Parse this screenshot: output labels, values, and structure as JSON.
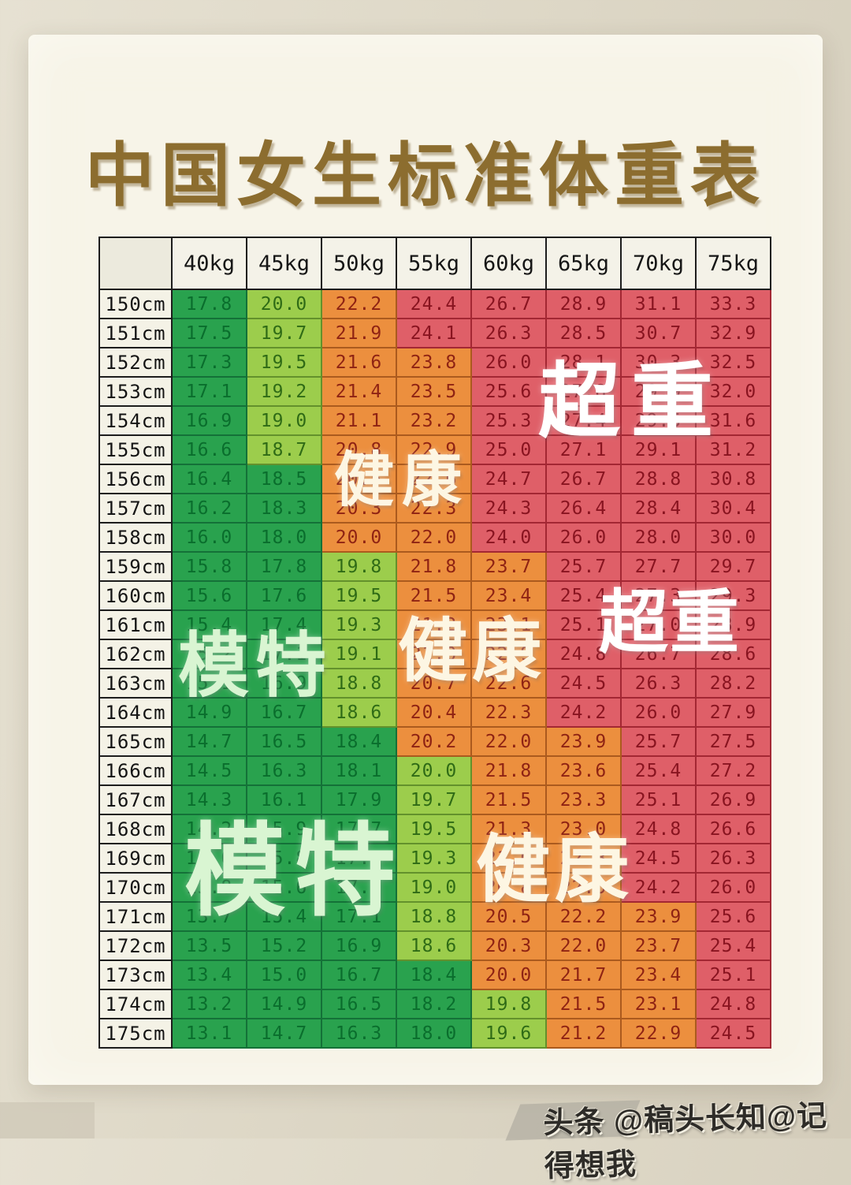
{
  "title": "中国女生标准体重表",
  "watermark": "头条 @稿头长知@记得想我",
  "colors": {
    "page_background": "#ded8c7",
    "card_background": "#f7f4e8",
    "title_brown": "#8c6d2f",
    "cell_dark_green": "#29a24e",
    "cell_light_green": "#9ccd4c",
    "cell_orange": "#ec8f3e",
    "cell_red": "#df5f68"
  },
  "overlays": [
    {
      "id": "overweight-1",
      "text": "超重"
    },
    {
      "id": "healthy-1",
      "text": "健康"
    },
    {
      "id": "model-1",
      "text": "模特"
    },
    {
      "id": "healthy-2",
      "text": "健康"
    },
    {
      "id": "overweight-2",
      "text": "超重"
    },
    {
      "id": "model-2",
      "text": "模特"
    },
    {
      "id": "healthy-3",
      "text": "健康"
    }
  ],
  "chart_data": {
    "type": "table",
    "title": "中国女生标准体重表",
    "description": "BMI values (weight kg / height m squared) for heights 150-175cm vs weights 40-75kg; cell color bands: dark green (model/underweight), light green, orange (healthy), red (overweight)",
    "col_headers": [
      "40kg",
      "45kg",
      "50kg",
      "55kg",
      "60kg",
      "65kg",
      "70kg",
      "75kg"
    ],
    "color_key": {
      "d": "#29a24e",
      "l": "#9ccd4c",
      "o": "#ec8f3e",
      "r": "#df5f68"
    },
    "rows": [
      {
        "height": "150cm",
        "bmi": [
          "17.8",
          "20.0",
          "22.2",
          "24.4",
          "26.7",
          "28.9",
          "31.1",
          "33.3"
        ],
        "colors": "dlorrrrr"
      },
      {
        "height": "151cm",
        "bmi": [
          "17.5",
          "19.7",
          "21.9",
          "24.1",
          "26.3",
          "28.5",
          "30.7",
          "32.9"
        ],
        "colors": "dlorrrrr"
      },
      {
        "height": "152cm",
        "bmi": [
          "17.3",
          "19.5",
          "21.6",
          "23.8",
          "26.0",
          "28.1",
          "30.3",
          "32.5"
        ],
        "colors": "dloorrrr"
      },
      {
        "height": "153cm",
        "bmi": [
          "17.1",
          "19.2",
          "21.4",
          "23.5",
          "25.6",
          "27.8",
          "29.9",
          "32.0"
        ],
        "colors": "dloorrrr"
      },
      {
        "height": "154cm",
        "bmi": [
          "16.9",
          "19.0",
          "21.1",
          "23.2",
          "25.3",
          "27.4",
          "29.5",
          "31.6"
        ],
        "colors": "dloorrrr"
      },
      {
        "height": "155cm",
        "bmi": [
          "16.6",
          "18.7",
          "20.8",
          "22.9",
          "25.0",
          "27.1",
          "29.1",
          "31.2"
        ],
        "colors": "dloorrrr"
      },
      {
        "height": "156cm",
        "bmi": [
          "16.4",
          "18.5",
          "20.5",
          "22.6",
          "24.7",
          "26.7",
          "28.8",
          "30.8"
        ],
        "colors": "ddoorrrr"
      },
      {
        "height": "157cm",
        "bmi": [
          "16.2",
          "18.3",
          "20.3",
          "22.3",
          "24.3",
          "26.4",
          "28.4",
          "30.4"
        ],
        "colors": "ddoorrrr"
      },
      {
        "height": "158cm",
        "bmi": [
          "16.0",
          "18.0",
          "20.0",
          "22.0",
          "24.0",
          "26.0",
          "28.0",
          "30.0"
        ],
        "colors": "ddoorrrr"
      },
      {
        "height": "159cm",
        "bmi": [
          "15.8",
          "17.8",
          "19.8",
          "21.8",
          "23.7",
          "25.7",
          "27.7",
          "29.7"
        ],
        "colors": "ddloorrr"
      },
      {
        "height": "160cm",
        "bmi": [
          "15.6",
          "17.6",
          "19.5",
          "21.5",
          "23.4",
          "25.4",
          "27.3",
          "29.3"
        ],
        "colors": "ddloorrr"
      },
      {
        "height": "161cm",
        "bmi": [
          "15.4",
          "17.4",
          "19.3",
          "21.2",
          "23.1",
          "25.1",
          "27.0",
          "28.9"
        ],
        "colors": "ddloorrr"
      },
      {
        "height": "162cm",
        "bmi": [
          "15.2",
          "17.1",
          "19.1",
          "21.0",
          "22.9",
          "24.8",
          "26.7",
          "28.6"
        ],
        "colors": "ddloorrr"
      },
      {
        "height": "163cm",
        "bmi": [
          "15.1",
          "16.9",
          "18.8",
          "20.7",
          "22.6",
          "24.5",
          "26.3",
          "28.2"
        ],
        "colors": "ddloorrr"
      },
      {
        "height": "164cm",
        "bmi": [
          "14.9",
          "16.7",
          "18.6",
          "20.4",
          "22.3",
          "24.2",
          "26.0",
          "27.9"
        ],
        "colors": "ddloorrr"
      },
      {
        "height": "165cm",
        "bmi": [
          "14.7",
          "16.5",
          "18.4",
          "20.2",
          "22.0",
          "23.9",
          "25.7",
          "27.5"
        ],
        "colors": "dddooorr"
      },
      {
        "height": "166cm",
        "bmi": [
          "14.5",
          "16.3",
          "18.1",
          "20.0",
          "21.8",
          "23.6",
          "25.4",
          "27.2"
        ],
        "colors": "dddloorr"
      },
      {
        "height": "167cm",
        "bmi": [
          "14.3",
          "16.1",
          "17.9",
          "19.7",
          "21.5",
          "23.3",
          "25.1",
          "26.9"
        ],
        "colors": "dddloorr"
      },
      {
        "height": "168cm",
        "bmi": [
          "14.2",
          "15.9",
          "17.7",
          "19.5",
          "21.3",
          "23.0",
          "24.8",
          "26.6"
        ],
        "colors": "dddloorr"
      },
      {
        "height": "169cm",
        "bmi": [
          "14.0",
          "15.8",
          "17.5",
          "19.3",
          "21.0",
          "22.8",
          "24.5",
          "26.3"
        ],
        "colors": "dddloorr"
      },
      {
        "height": "170cm",
        "bmi": [
          "13.8",
          "15.6",
          "17.3",
          "19.0",
          "20.8",
          "22.5",
          "24.2",
          "26.0"
        ],
        "colors": "dddloorr"
      },
      {
        "height": "171cm",
        "bmi": [
          "13.7",
          "15.4",
          "17.1",
          "18.8",
          "20.5",
          "22.2",
          "23.9",
          "25.6"
        ],
        "colors": "dddlooor"
      },
      {
        "height": "172cm",
        "bmi": [
          "13.5",
          "15.2",
          "16.9",
          "18.6",
          "20.3",
          "22.0",
          "23.7",
          "25.4"
        ],
        "colors": "dddlooor"
      },
      {
        "height": "173cm",
        "bmi": [
          "13.4",
          "15.0",
          "16.7",
          "18.4",
          "20.0",
          "21.7",
          "23.4",
          "25.1"
        ],
        "colors": "ddddooor"
      },
      {
        "height": "174cm",
        "bmi": [
          "13.2",
          "14.9",
          "16.5",
          "18.2",
          "19.8",
          "21.5",
          "23.1",
          "24.8"
        ],
        "colors": "ddddloor"
      },
      {
        "height": "175cm",
        "bmi": [
          "13.1",
          "14.7",
          "16.3",
          "18.0",
          "19.6",
          "21.2",
          "22.9",
          "24.5"
        ],
        "colors": "ddddloor"
      }
    ]
  }
}
